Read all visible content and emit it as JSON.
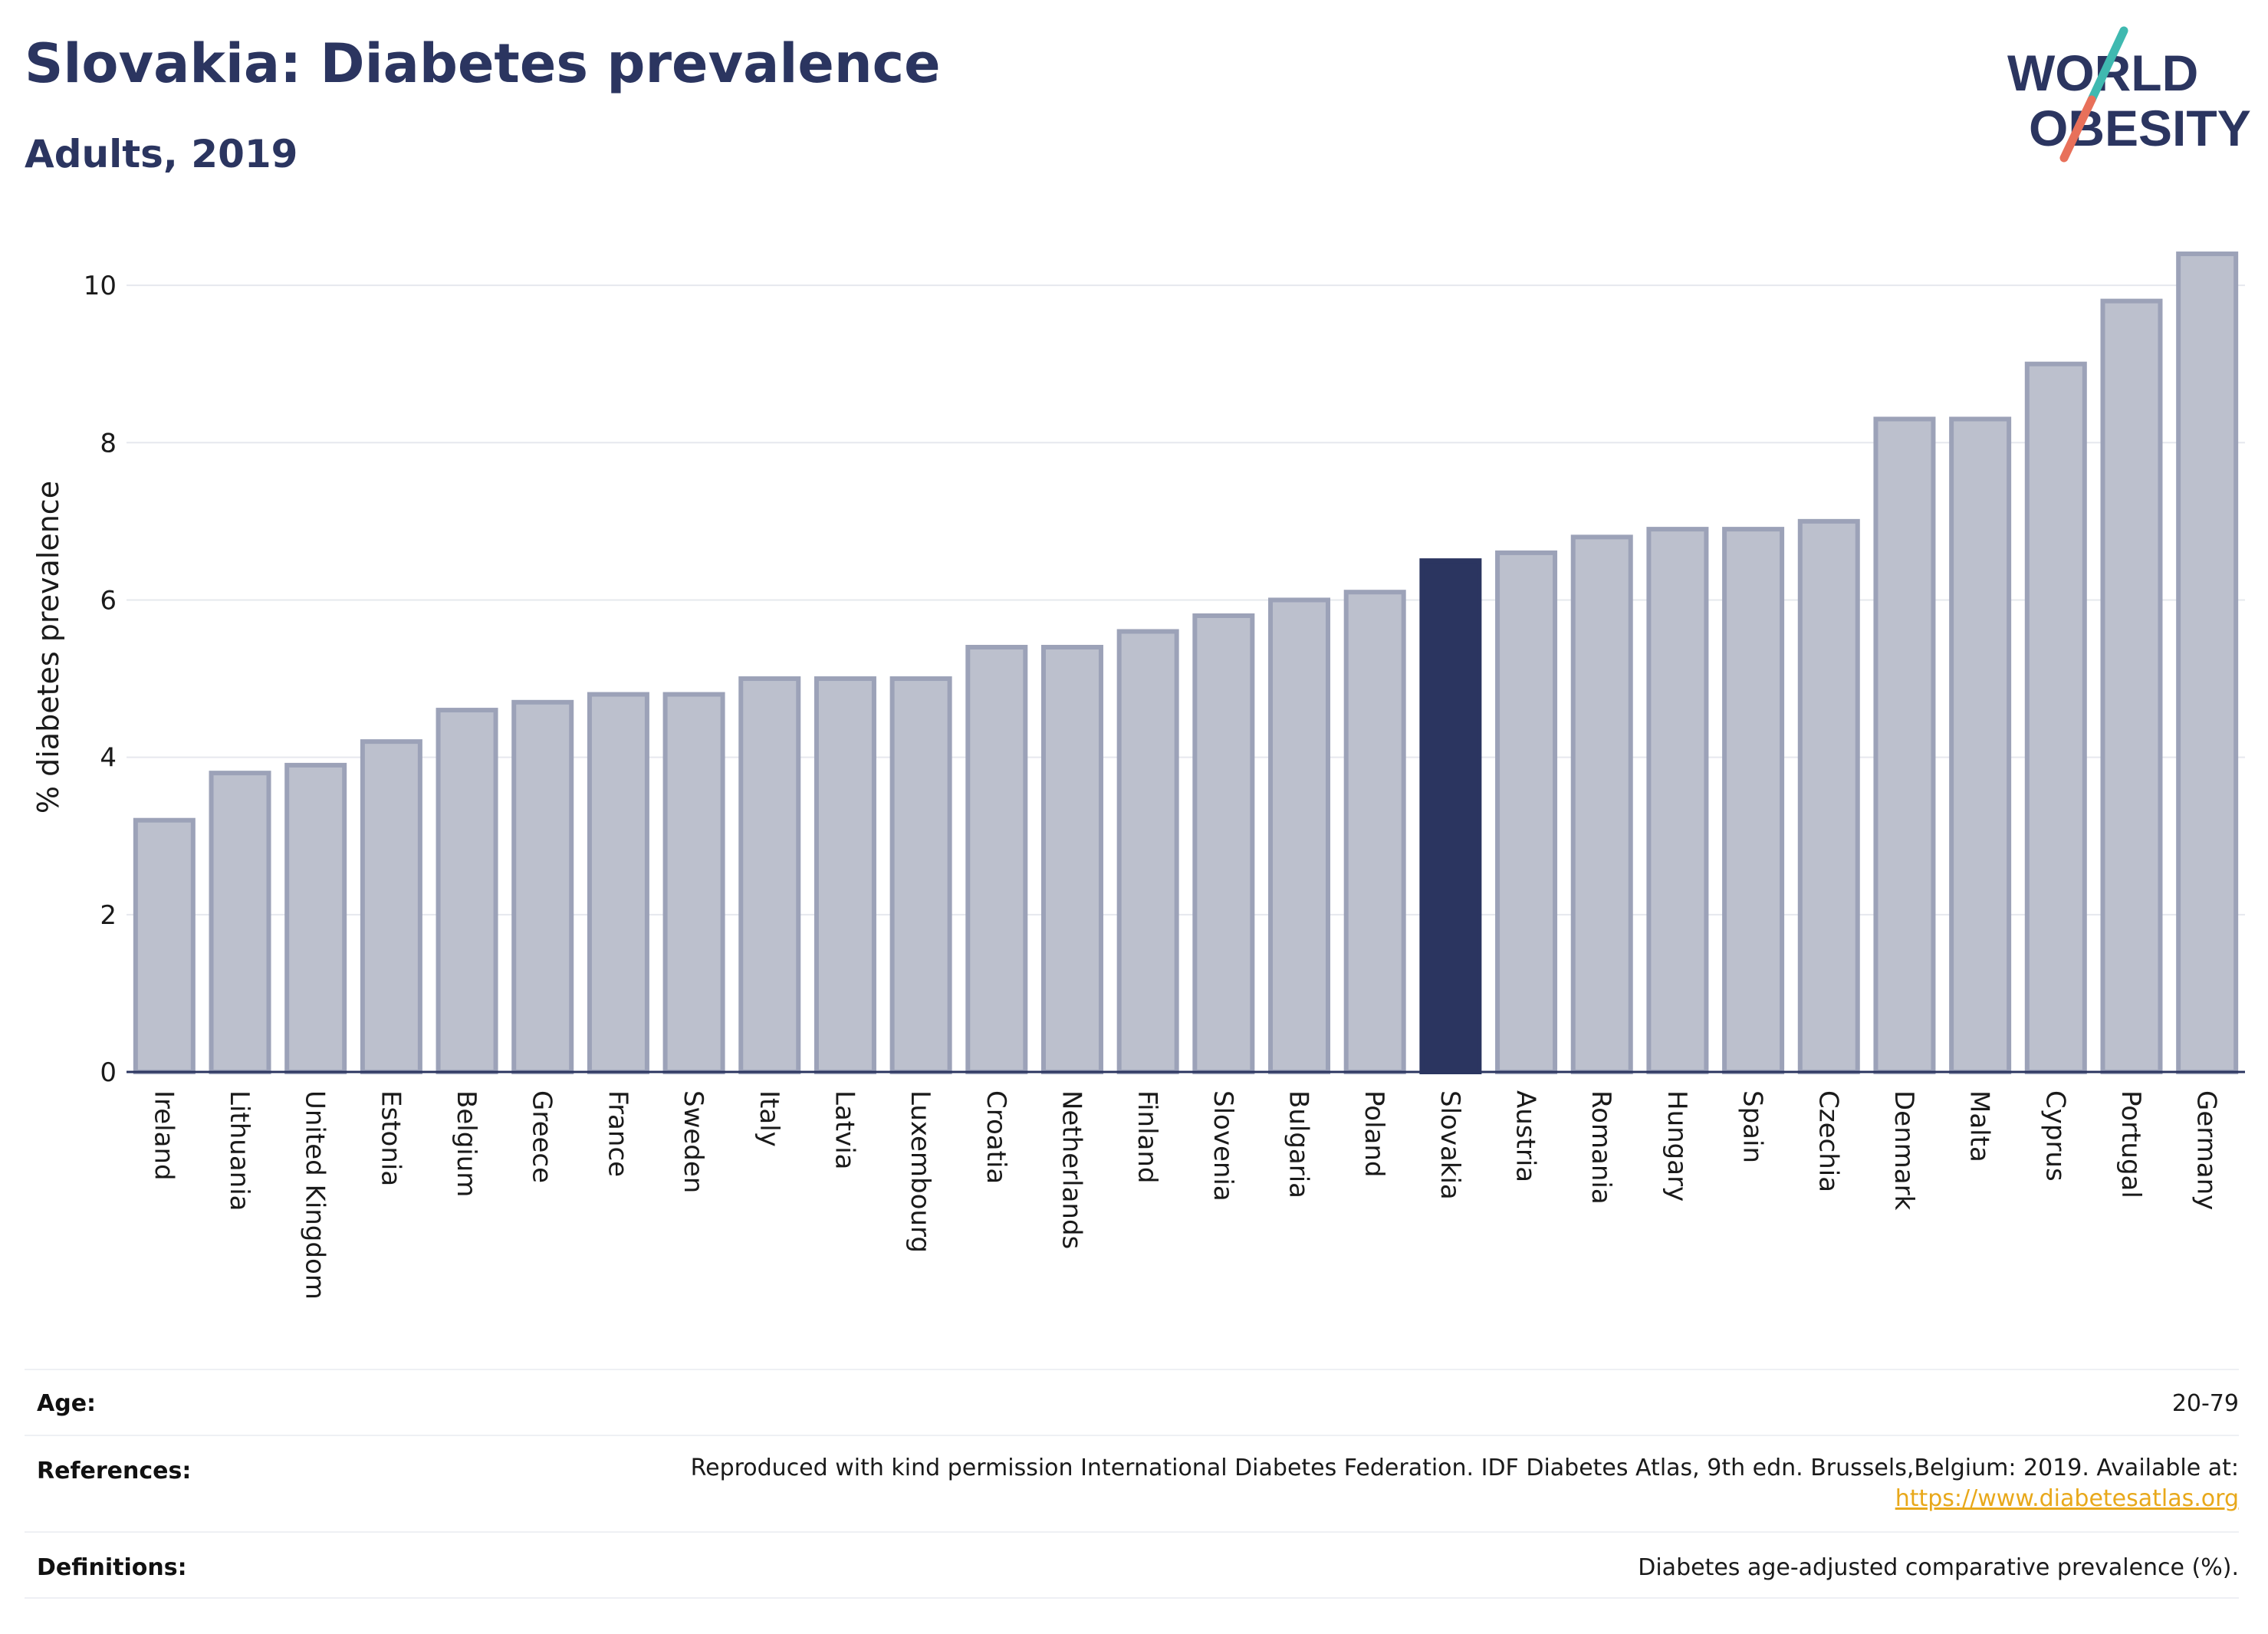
{
  "header": {
    "title": "Slovakia: Diabetes prevalence",
    "subtitle": "Adults, 2019"
  },
  "logo": {
    "line1": "WORLD",
    "line2": "OBESITY",
    "text_color": "#2b3560",
    "accent_teal": "#3fb9b0",
    "accent_coral": "#e8705a"
  },
  "chart_data": {
    "type": "bar",
    "ylabel": "% diabetes prevalence",
    "xlabel": "",
    "ylim": [
      0,
      10.8
    ],
    "yticks": [
      0,
      2,
      4,
      6,
      8,
      10
    ],
    "grid": true,
    "highlight": "Slovakia",
    "colors": {
      "bar": "#bcc0cd",
      "bar_border": "#9ca2b8",
      "highlight": "#2b3560",
      "grid": "#e6e8ee",
      "axis": "#2b3560"
    },
    "categories": [
      "Ireland",
      "Lithuania",
      "United Kingdom",
      "Estonia",
      "Belgium",
      "Greece",
      "France",
      "Sweden",
      "Italy",
      "Latvia",
      "Luxembourg",
      "Croatia",
      "Netherlands",
      "Finland",
      "Slovenia",
      "Bulgaria",
      "Poland",
      "Slovakia",
      "Austria",
      "Romania",
      "Hungary",
      "Spain",
      "Czechia",
      "Denmark",
      "Malta",
      "Cyprus",
      "Portugal",
      "Germany"
    ],
    "values": [
      3.2,
      3.8,
      3.9,
      4.2,
      4.6,
      4.7,
      4.8,
      4.8,
      5.0,
      5.0,
      5.0,
      5.4,
      5.4,
      5.6,
      5.8,
      6.0,
      6.1,
      6.5,
      6.6,
      6.8,
      6.9,
      6.9,
      7.0,
      8.3,
      8.3,
      9.0,
      9.8,
      10.4
    ]
  },
  "meta": {
    "age_label": "Age:",
    "age_value": "20-79",
    "references_label": "References:",
    "references_text": "Reproduced with kind permission International Diabetes Federation. IDF Diabetes Atlas, 9th edn. Brussels,Belgium: 2019. Available at:",
    "references_link": "https://www.diabetesatlas.org",
    "definitions_label": "Definitions:",
    "definitions_value": "Diabetes age-adjusted comparative prevalence (%)."
  }
}
